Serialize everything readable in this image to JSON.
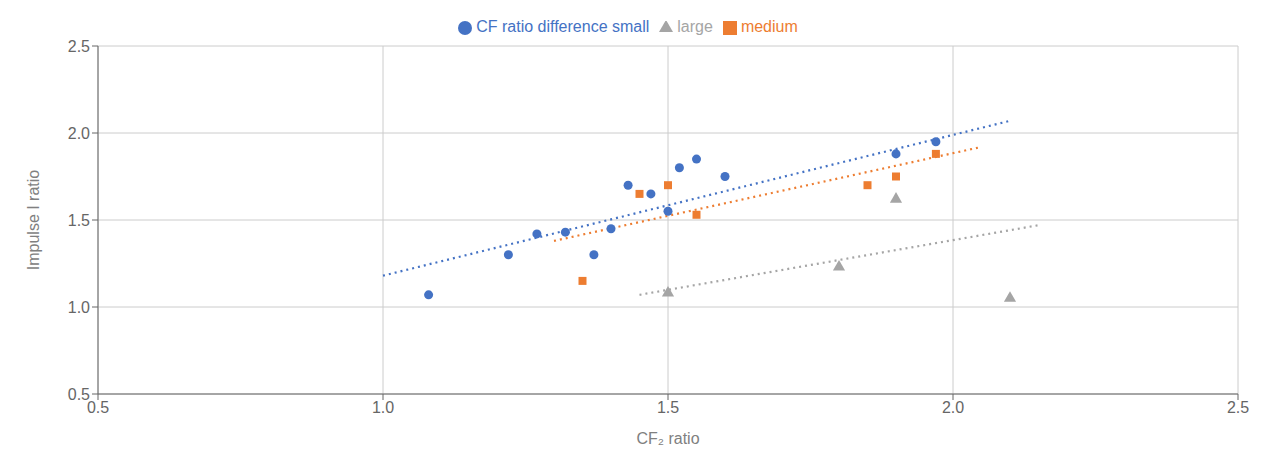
{
  "chart_data": {
    "type": "scatter",
    "xlabel": "CF₂ ratio",
    "ylabel": "Impulse I ratio",
    "xlim": [
      0.5,
      2.5
    ],
    "ylim": [
      0.5,
      2.5
    ],
    "xticks": [
      0.5,
      {
        "value": 1.0,
        "label": "1.0"
      },
      1.5,
      {
        "value": 2.0,
        "label": "2.0"
      },
      2.5
    ],
    "yticks": [
      0.5,
      {
        "value": 1.0,
        "label": "1.0"
      },
      1.5,
      {
        "value": 2.0,
        "label": "2.0"
      },
      2.5
    ],
    "grid": true,
    "legend": "top",
    "series": [
      {
        "name": "CF ratio difference small",
        "type": "scatter",
        "marker": "circle",
        "color": "#4472C4",
        "x": [
          1.08,
          1.22,
          1.27,
          1.32,
          1.37,
          1.4,
          1.43,
          1.47,
          1.5,
          1.52,
          1.55,
          1.6,
          1.9,
          1.97
        ],
        "values": [
          1.07,
          1.3,
          1.42,
          1.43,
          1.3,
          1.45,
          1.7,
          1.65,
          1.55,
          1.8,
          1.85,
          1.75,
          1.88,
          1.95
        ]
      },
      {
        "name": "medium",
        "type": "scatter",
        "marker": "square",
        "color": "#ED7D31",
        "x": [
          1.35,
          1.45,
          1.5,
          1.55,
          1.85,
          1.9,
          1.97
        ],
        "values": [
          1.15,
          1.65,
          1.7,
          1.53,
          1.7,
          1.75,
          1.88
        ]
      },
      {
        "name": "large",
        "type": "scatter",
        "marker": "triangle",
        "color": "#A5A5A5",
        "x": [
          1.5,
          1.8,
          1.9,
          2.1
        ],
        "values": [
          1.08,
          1.23,
          1.62,
          1.05
        ]
      },
      {
        "type": "line",
        "line_style": "dotted",
        "color": "#4472C4",
        "x": [
          1.0,
          2.1
        ],
        "values": [
          1.18,
          2.07
        ]
      },
      {
        "type": "line",
        "line_style": "dotted",
        "color": "#ED7D31",
        "x": [
          1.3,
          2.05
        ],
        "values": [
          1.38,
          1.92
        ]
      },
      {
        "type": "line",
        "line_style": "dotted",
        "color": "#A5A5A5",
        "x": [
          1.45,
          2.15
        ],
        "values": [
          1.07,
          1.47
        ]
      }
    ]
  }
}
